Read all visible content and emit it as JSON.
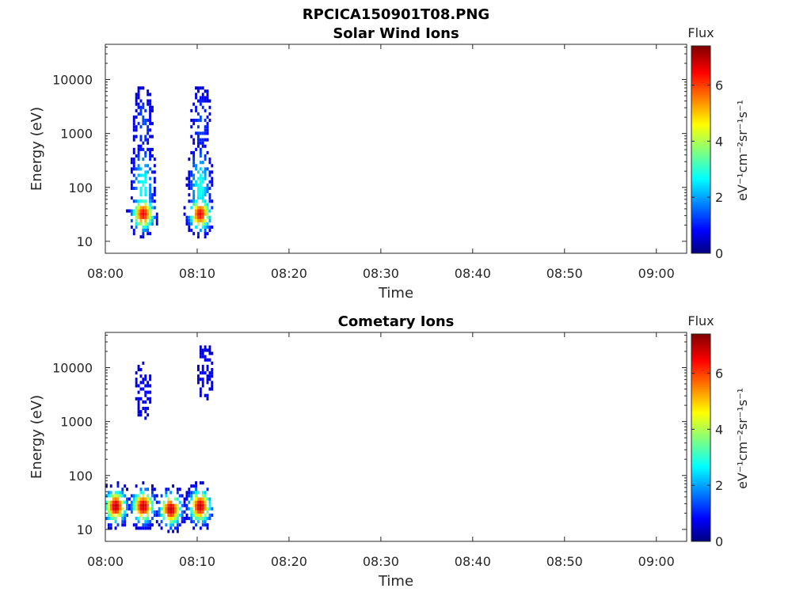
{
  "figure_title": "RPCICA150901T08.PNG",
  "colorbar": {
    "label": "Flux",
    "unit_label": "eV⁻¹cm⁻²sr⁻¹s⁻¹",
    "ticks": [
      "0",
      "2",
      "4",
      "6"
    ],
    "range": [
      0,
      7.4
    ],
    "colormap": "jet"
  },
  "chart_data": [
    {
      "type": "heatmap",
      "title": "Solar Wind Ions",
      "xlabel": "Time",
      "ylabel": "Energy (eV)",
      "xticks": [
        "08:00",
        "08:10",
        "08:20",
        "08:30",
        "08:40",
        "08:50",
        "09:00"
      ],
      "yticks": [
        "10",
        "100",
        "1000",
        "10000"
      ],
      "xlim_minutes": [
        0,
        63.3
      ],
      "ylim": [
        6,
        45000
      ],
      "yscale": "log",
      "data_time_range_minutes": [
        0,
        11.7
      ],
      "features": [
        {
          "time_min": 4.0,
          "energy_eV": 30,
          "flux": 6.6
        },
        {
          "time_min": 10.2,
          "energy_eV": 30,
          "flux": 6.6
        },
        {
          "time_min": 4.0,
          "energy_eV": 1500,
          "flux": 1.5
        },
        {
          "time_min": 10.3,
          "energy_eV": 1500,
          "flux": 1.5
        },
        {
          "time_min": 4.0,
          "energy_eV": 100,
          "flux": 3.0
        },
        {
          "time_min": 10.2,
          "energy_eV": 100,
          "flux": 3.0
        }
      ]
    },
    {
      "type": "heatmap",
      "title": "Cometary Ions",
      "xlabel": "Time",
      "ylabel": "Energy (eV)",
      "xticks": [
        "08:00",
        "08:10",
        "08:20",
        "08:30",
        "08:40",
        "08:50",
        "09:00"
      ],
      "yticks": [
        "10",
        "100",
        "1000",
        "10000"
      ],
      "xlim_minutes": [
        0,
        63.3
      ],
      "ylim": [
        6,
        45000
      ],
      "yscale": "log",
      "data_time_range_minutes": [
        0,
        11.7
      ],
      "features": [
        {
          "time_min": 1.0,
          "energy_eV": 25,
          "flux": 7.0
        },
        {
          "time_min": 4.0,
          "energy_eV": 25,
          "flux": 7.0
        },
        {
          "time_min": 7.0,
          "energy_eV": 22,
          "flux": 7.0
        },
        {
          "time_min": 10.2,
          "energy_eV": 25,
          "flux": 7.0
        },
        {
          "time_min": 4.0,
          "energy_eV": 3500,
          "flux": 1.0
        },
        {
          "time_min": 10.8,
          "energy_eV": 8000,
          "flux": 1.0
        }
      ]
    }
  ]
}
